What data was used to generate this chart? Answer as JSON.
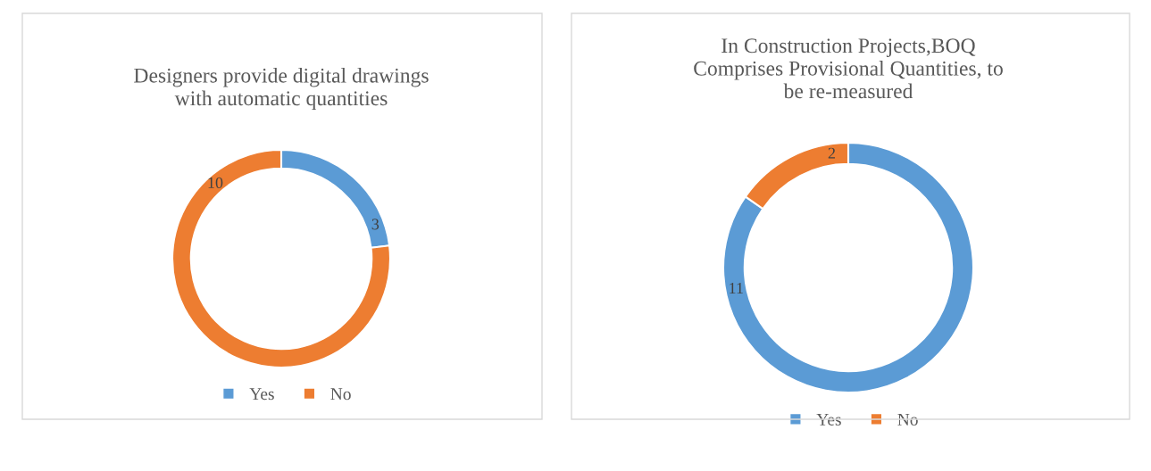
{
  "chart_data": [
    {
      "type": "donut",
      "title": "Designers provide digital drawings\nwith automatic quantities",
      "categories": [
        "Yes",
        "No"
      ],
      "values": [
        3,
        10
      ],
      "colors": [
        "#5b9bd5",
        "#ed7d31"
      ],
      "data_labels": true,
      "legend": "bottom"
    },
    {
      "type": "donut",
      "title": "In Construction Projects,BOQ\nComprises Provisional Quantities, to\nbe re-measured",
      "categories": [
        "Yes",
        "No"
      ],
      "values": [
        11,
        2
      ],
      "colors": [
        "#5b9bd5",
        "#ed7d31"
      ],
      "data_labels": true,
      "legend": "bottom"
    }
  ]
}
